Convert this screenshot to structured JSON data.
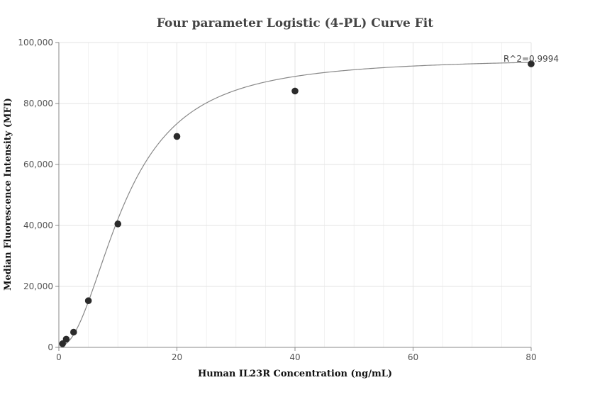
{
  "chart_data": {
    "type": "scatter",
    "title": "Four parameter Logistic (4-PL) Curve Fit",
    "xlabel": "Human IL23R Concentration (ng/mL)",
    "ylabel": "Median Fluorescence Intensity (MFI)",
    "xlim": [
      0,
      80
    ],
    "ylim": [
      0,
      100000
    ],
    "x_ticks": [
      0,
      20,
      40,
      60,
      80
    ],
    "x_tick_labels": [
      "0",
      "20",
      "40",
      "60",
      "80"
    ],
    "y_ticks": [
      0,
      20000,
      40000,
      60000,
      80000,
      100000
    ],
    "y_tick_labels": [
      "0",
      "20,000",
      "40,000",
      "60,000",
      "80,000",
      "100,000"
    ],
    "grid": true,
    "series": [
      {
        "x": [
          0.625,
          1.25,
          2.5,
          5,
          10,
          20,
          40,
          80
        ],
        "y": [
          1200,
          2700,
          5000,
          15300,
          40500,
          69200,
          84100,
          93000
        ]
      }
    ],
    "fit": {
      "model": "4PL",
      "a": 300,
      "b": 2.1,
      "c": 11.2,
      "d": 95000
    },
    "annotations": [
      "R^2=0.9994"
    ],
    "colors": {
      "points": "#2b2b2b",
      "curve": "#888888"
    }
  }
}
